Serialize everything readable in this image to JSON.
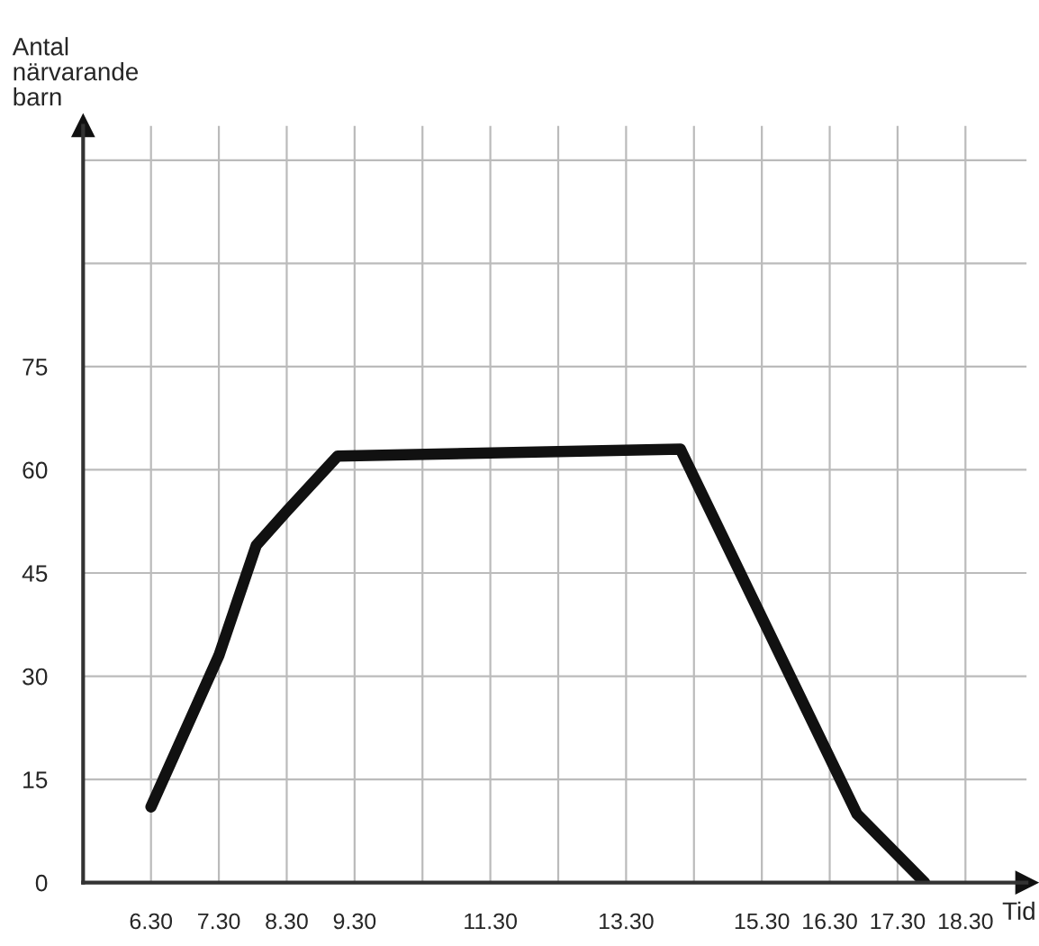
{
  "chart_data": {
    "type": "line",
    "ylabel": "Antal\nnärvarande\nbarn",
    "xlabel": "Tid",
    "x": [
      6.3,
      7.3,
      7.85,
      8.3,
      9.05,
      14.1,
      16.7,
      17.7
    ],
    "series": [
      {
        "color": "#111111",
        "values": [
          11,
          33,
          49,
          54,
          62,
          63,
          10,
          0
        ]
      }
    ],
    "xlim": [
      5.3,
      19.2
    ],
    "ylim": [
      0,
      110
    ],
    "xticks": [
      {
        "value": 6.3,
        "label": "6.30"
      },
      {
        "value": 7.3,
        "label": "7.30"
      },
      {
        "value": 8.3,
        "label": "8.30"
      },
      {
        "value": 9.3,
        "label": "9.30"
      },
      {
        "value": 10.3,
        "label": null
      },
      {
        "value": 11.3,
        "label": "11.30"
      },
      {
        "value": 12.3,
        "label": null
      },
      {
        "value": 13.3,
        "label": "13.30"
      },
      {
        "value": 14.3,
        "label": null
      },
      {
        "value": 15.3,
        "label": "15.30"
      },
      {
        "value": 16.3,
        "label": "16.30"
      },
      {
        "value": 17.3,
        "label": "17.30"
      },
      {
        "value": 18.3,
        "label": "18.30"
      }
    ],
    "yticks": [
      0,
      15,
      30,
      45,
      60,
      75,
      {
        "value": 90,
        "label": null
      },
      {
        "value": 105,
        "label": null
      }
    ],
    "grid": true,
    "line_style": "solid",
    "marker": "none",
    "legend": false
  }
}
